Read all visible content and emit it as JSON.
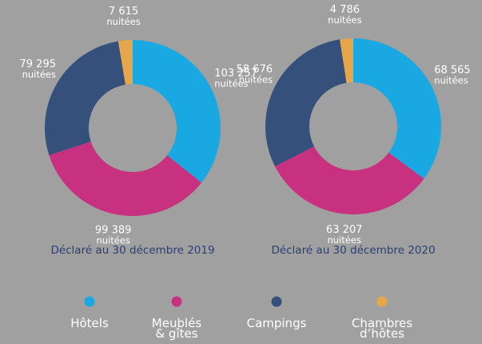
{
  "chart_data": [
    {
      "type": "pie",
      "title": "Déclaré au 30 décembre 2019",
      "categories": [
        "Hôtels",
        "Meublés\n& gîtes",
        "Campings",
        "Chambres\nd’hôtes"
      ],
      "values": [
        103257,
        99389,
        79295,
        7615
      ],
      "value_labels": [
        "103 257",
        "99 389",
        "79 295",
        "7 615"
      ],
      "unit_label": "nuitées",
      "colors": [
        "#1aa8e2",
        "#c8317f",
        "#34507b",
        "#e6a74a"
      ]
    },
    {
      "type": "pie",
      "title": "Déclaré au 30 décembre 2020",
      "categories": [
        "Hôtels",
        "Meublés\n& gîtes",
        "Campings",
        "Chambres\nd’hôtes"
      ],
      "values": [
        68565,
        63207,
        58676,
        4786
      ],
      "value_labels": [
        "68 565",
        "63 207",
        "58 676",
        "4 786"
      ],
      "unit_label": "nuitées",
      "colors": [
        "#1aa8e2",
        "#c8317f",
        "#34507b",
        "#e6a74a"
      ]
    }
  ]
}
